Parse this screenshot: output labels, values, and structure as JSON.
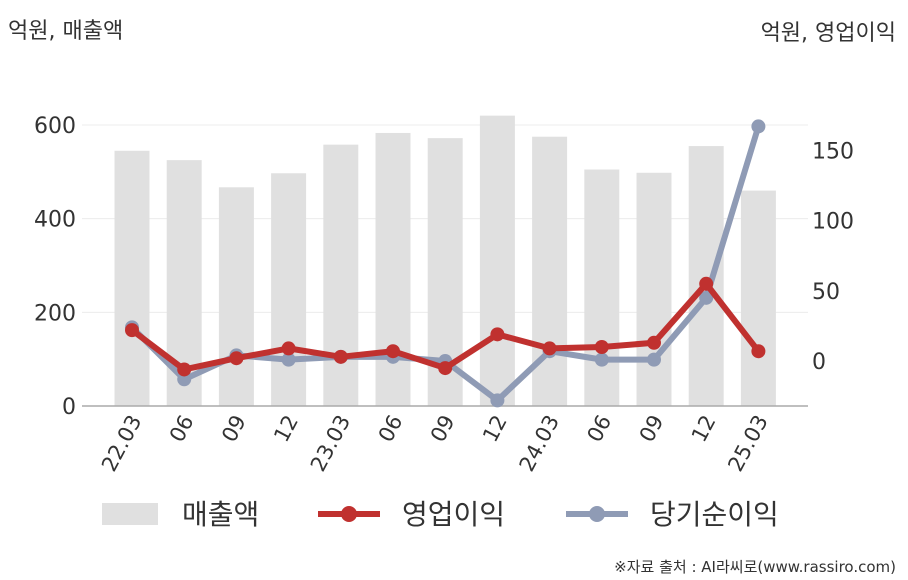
{
  "chart_data": {
    "type": "bar+line",
    "left_unit_label": "억원, 매출액",
    "right_unit_label": "억원, 영업이익",
    "categories": [
      "22.03",
      "06",
      "09",
      "12",
      "23.03",
      "06",
      "09",
      "12",
      "24.03",
      "06",
      "09",
      "12",
      "25.03"
    ],
    "left_axis": {
      "ylim": [
        0,
        600
      ],
      "ticks": [
        "0",
        "200",
        "400",
        "600"
      ]
    },
    "right_axis": {
      "ylim": [
        -32,
        168
      ],
      "ticks": [
        "0",
        "50",
        "100",
        "150"
      ]
    },
    "series": [
      {
        "name": "매출액",
        "type": "bar",
        "axis": "left",
        "color": "#e0e0e0",
        "values": [
          545,
          525,
          467,
          497,
          558,
          583,
          572,
          620,
          575,
          505,
          498,
          555,
          460
        ]
      },
      {
        "name": "영업이익",
        "type": "line",
        "axis": "right",
        "color": "#c0312f",
        "values": [
          22,
          -6,
          2,
          9,
          3,
          7,
          -5,
          19,
          9,
          10,
          13,
          55,
          7
        ]
      },
      {
        "name": "당기순이익",
        "type": "line",
        "axis": "right",
        "color": "#8f9bb5",
        "values": [
          24,
          -13,
          4,
          1,
          3,
          3,
          0,
          -28,
          7,
          1,
          1,
          45,
          167
        ]
      }
    ],
    "grid": true,
    "legend_position": "bottom"
  },
  "source_text": "※자료 출처 : AI라씨로(www.rassiro.com)"
}
